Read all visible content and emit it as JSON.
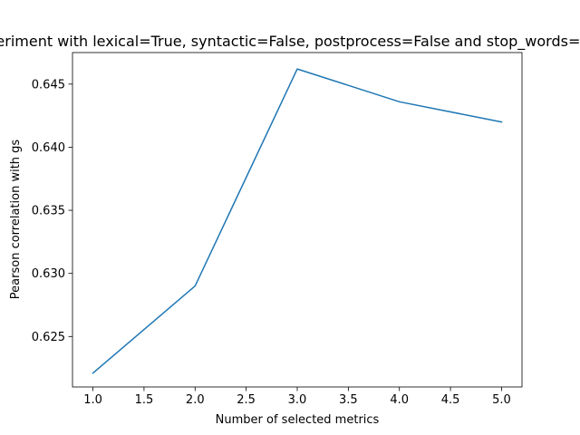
{
  "chart_data": {
    "type": "line",
    "title": "Experiment with lexical=True, syntactic=False, postprocess=False and stop_words=True",
    "xlabel": "Number of selected metrics",
    "ylabel": "Pearson correlation with gs",
    "xlim": [
      0.8,
      5.2
    ],
    "ylim": [
      0.621,
      0.6475
    ],
    "x_ticks": [
      1.0,
      1.5,
      2.0,
      2.5,
      3.0,
      3.5,
      4.0,
      4.5,
      5.0
    ],
    "x_tick_labels": [
      "1.0",
      "1.5",
      "2.0",
      "2.5",
      "3.0",
      "3.5",
      "4.0",
      "4.5",
      "5.0"
    ],
    "y_ticks": [
      0.625,
      0.63,
      0.635,
      0.64,
      0.645
    ],
    "y_tick_labels": [
      "0.625",
      "0.630",
      "0.635",
      "0.640",
      "0.645"
    ],
    "grid": false,
    "legend": "none",
    "series": [
      {
        "color": "#1f77b4",
        "x": [
          1,
          2,
          3,
          4,
          5
        ],
        "y": [
          0.6221,
          0.629,
          0.6462,
          0.6436,
          0.642
        ]
      }
    ]
  }
}
